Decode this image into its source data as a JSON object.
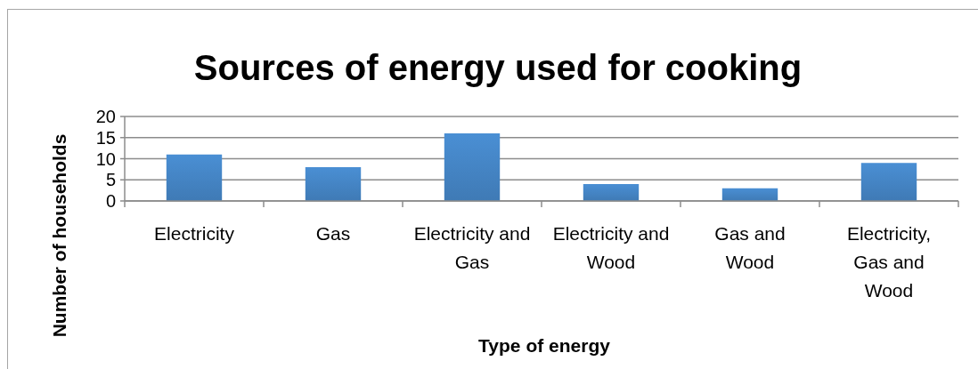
{
  "chart_data": {
    "type": "bar",
    "title": "Sources of energy used for cooking",
    "xlabel": "Type of energy",
    "ylabel": "Number of households",
    "categories": [
      "Electricity",
      "Gas",
      "Electricity and Gas",
      "Electricity and Wood",
      "Gas and Wood",
      "Electricity, Gas and Wood"
    ],
    "values": [
      11,
      8,
      16,
      4,
      3,
      9
    ],
    "color": "#4a8fd4",
    "ylim": [
      0,
      20
    ],
    "yticks": [
      0,
      5,
      10,
      15,
      20
    ],
    "grid": "y"
  }
}
